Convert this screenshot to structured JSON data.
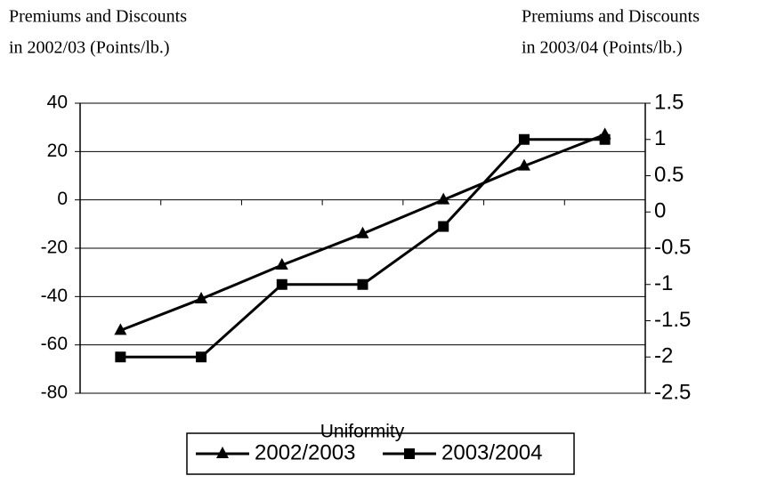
{
  "chart_data": {
    "type": "line",
    "y_label": [
      "Premiums and Discounts",
      "in 2002/03 (Points/lb.)"
    ],
    "y2_label": [
      "Premiums and Discounts",
      "in 2003/04 (Points/lb.)"
    ],
    "x_label": "Uniformity",
    "categories": [
      null,
      null,
      null,
      null,
      null,
      null,
      null
    ],
    "series": [
      {
        "name": "2002/2003",
        "color": "#000000",
        "marker": "triangle",
        "values": [
          -54,
          -41,
          -27,
          -14,
          0,
          14,
          27
        ]
      },
      {
        "name": "2003/2004",
        "color": "#000000",
        "marker": "square",
        "axis": "y2",
        "values": [
          -2,
          -2,
          -1,
          -1,
          -0.2,
          1,
          1
        ]
      }
    ],
    "ylim": [
      -80,
      40
    ],
    "yticks": [
      -80,
      -60,
      -40,
      -20,
      0,
      20,
      40
    ],
    "y2lim": [
      -2.5,
      1.5
    ],
    "y2ticks": [
      -2.5,
      -2,
      -1.5,
      -1,
      -0.5,
      0,
      0.5,
      1,
      1.5
    ],
    "grid": true,
    "legend": "bottom"
  }
}
